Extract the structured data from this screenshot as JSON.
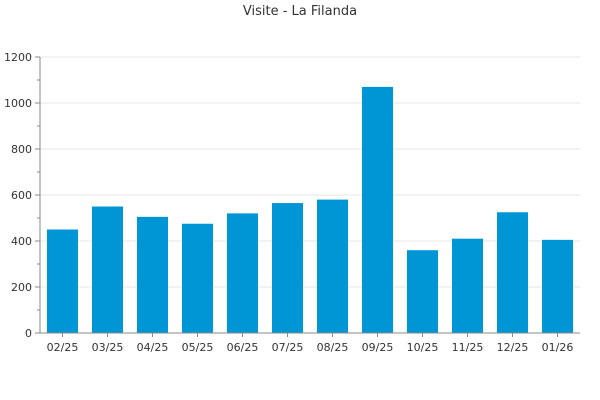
{
  "chart_data": {
    "type": "bar",
    "title": "Visite - La Filanda",
    "xlabel": "",
    "ylabel": "",
    "categories": [
      "02/25",
      "03/25",
      "04/25",
      "05/25",
      "06/25",
      "07/25",
      "08/25",
      "09/25",
      "10/25",
      "11/25",
      "12/25",
      "01/26"
    ],
    "values": [
      450,
      550,
      505,
      475,
      520,
      565,
      580,
      1070,
      360,
      410,
      525,
      405
    ],
    "ylim": [
      0,
      1200
    ],
    "yticks": [
      0,
      200,
      400,
      600,
      800,
      1000,
      1200
    ],
    "grid": true,
    "legend": "none",
    "bar_color": "#0096d6",
    "grid_color": "#e6e6e6",
    "axis_color": "#888888"
  }
}
